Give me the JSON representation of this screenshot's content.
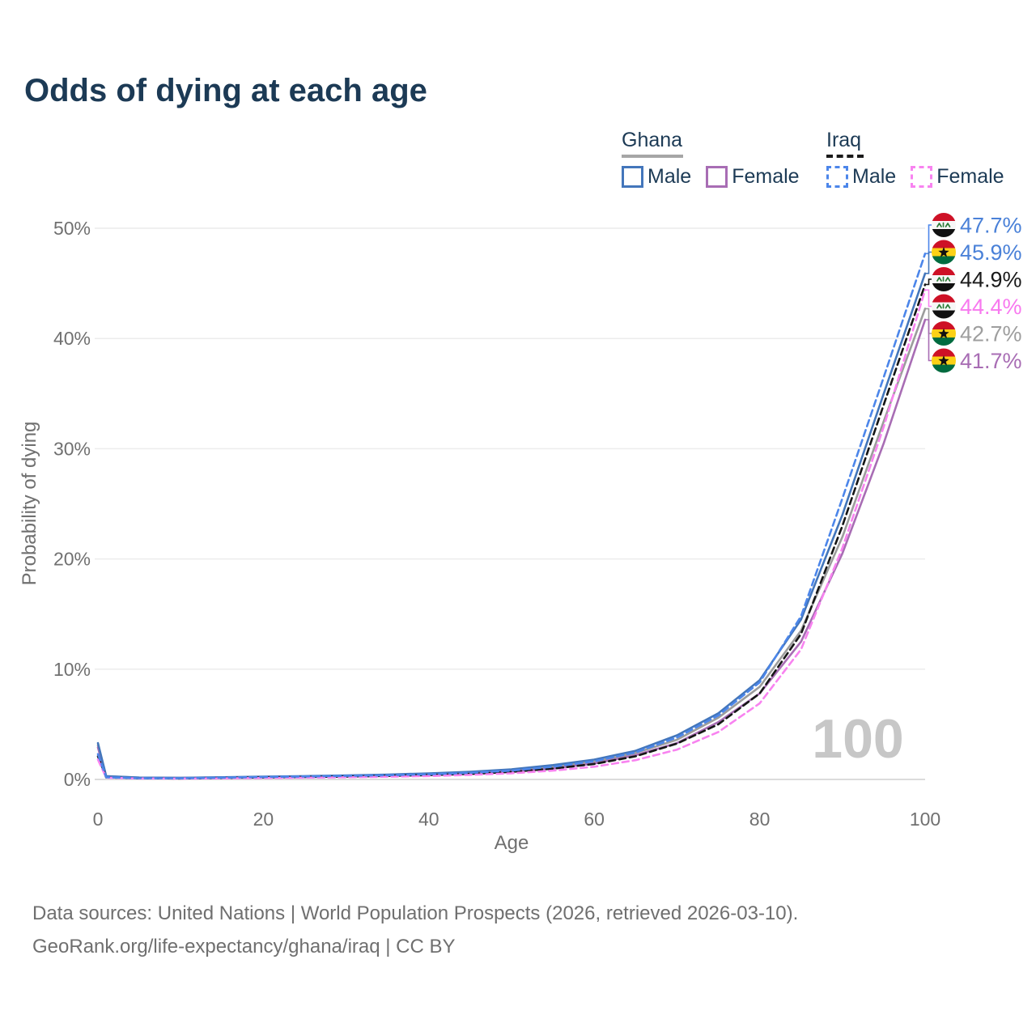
{
  "title": "Odds of dying at each age",
  "legend": {
    "groups": [
      {
        "id": "ghana",
        "label": "Ghana",
        "underline_style": "solid",
        "underline_color": "#a6a6a6",
        "items": [
          {
            "label": "Male",
            "color": "#4376bb",
            "dash": false
          },
          {
            "label": "Female",
            "color": "#a86db4",
            "dash": false
          }
        ]
      },
      {
        "id": "iraq",
        "label": "Iraq",
        "underline_style": "dashed",
        "underline_color": "#1b1b1b",
        "items": [
          {
            "label": "Male",
            "color": "#4c86ea",
            "dash": true
          },
          {
            "label": "Female",
            "color": "#f883f0",
            "dash": true
          }
        ]
      }
    ]
  },
  "chart_data": {
    "type": "line",
    "title": "Odds of dying at each age",
    "xlabel": "Age",
    "ylabel": "Probability of dying",
    "xlim": [
      0,
      100
    ],
    "ylim": [
      0,
      50
    ],
    "grid": true,
    "x_ticks": [
      "0",
      "20",
      "40",
      "60",
      "80",
      "100"
    ],
    "x_tick_values": [
      0,
      20,
      40,
      60,
      80,
      100
    ],
    "y_ticks": [
      "0%",
      "10%",
      "20%",
      "30%",
      "40%",
      "50%"
    ],
    "y_tick_values": [
      0,
      10,
      20,
      30,
      40,
      50
    ],
    "watermark": "100",
    "ages": [
      0,
      1,
      5,
      10,
      15,
      20,
      25,
      30,
      35,
      40,
      45,
      50,
      55,
      60,
      65,
      70,
      75,
      80,
      85,
      90,
      95,
      100
    ],
    "series": [
      {
        "id": "ghana-total",
        "name": "Ghana Both sexes",
        "color": "#9c9c9c",
        "label_color": "#9e9e9e",
        "dash": false,
        "flag": "ghana",
        "end_label": "42.7%",
        "values": [
          3.1,
          0.28,
          0.16,
          0.14,
          0.18,
          0.22,
          0.27,
          0.32,
          0.39,
          0.49,
          0.62,
          0.82,
          1.15,
          1.6,
          2.4,
          3.6,
          5.6,
          8.4,
          13.5,
          22.0,
          32.5,
          42.7
        ]
      },
      {
        "id": "ghana-female",
        "name": "Ghana Female",
        "color": "#a86db4",
        "label_color": "#a86db4",
        "dash": false,
        "flag": "ghana",
        "end_label": "41.7%",
        "values": [
          2.9,
          0.26,
          0.15,
          0.13,
          0.16,
          0.19,
          0.23,
          0.28,
          0.34,
          0.42,
          0.54,
          0.72,
          1.0,
          1.45,
          2.2,
          3.3,
          5.2,
          7.8,
          12.5,
          20.5,
          30.5,
          41.7
        ]
      },
      {
        "id": "ghana-male",
        "name": "Ghana Male",
        "color": "#4376bb",
        "label_color": "#4a81d8",
        "dash": false,
        "flag": "ghana",
        "end_label": "45.9%",
        "values": [
          3.3,
          0.3,
          0.17,
          0.15,
          0.2,
          0.25,
          0.3,
          0.36,
          0.44,
          0.55,
          0.7,
          0.92,
          1.3,
          1.8,
          2.6,
          4.0,
          6.0,
          9.0,
          14.5,
          24.0,
          35.0,
          45.9
        ]
      },
      {
        "id": "iraq-total",
        "name": "Iraq Both sexes",
        "color": "#161616",
        "label_color": "#1a1a1a",
        "dash": true,
        "flag": "iraq",
        "end_label": "44.9%",
        "values": [
          2.1,
          0.18,
          0.1,
          0.09,
          0.13,
          0.18,
          0.22,
          0.26,
          0.32,
          0.39,
          0.5,
          0.68,
          0.98,
          1.4,
          2.1,
          3.25,
          5.0,
          7.8,
          13.2,
          23.0,
          34.0,
          44.9
        ]
      },
      {
        "id": "iraq-female",
        "name": "Iraq Female",
        "color": "#f883f0",
        "label_color": "#f879ef",
        "dash": true,
        "flag": "iraq",
        "end_label": "44.4%",
        "values": [
          1.8,
          0.16,
          0.09,
          0.08,
          0.1,
          0.13,
          0.16,
          0.2,
          0.25,
          0.31,
          0.41,
          0.56,
          0.8,
          1.15,
          1.75,
          2.7,
          4.3,
          6.9,
          11.8,
          21.0,
          32.0,
          44.4
        ]
      },
      {
        "id": "iraq-male",
        "name": "Iraq Male",
        "color": "#4c86ea",
        "label_color": "#4a81d8",
        "dash": true,
        "flag": "iraq",
        "end_label": "47.7%",
        "values": [
          2.3,
          0.2,
          0.11,
          0.1,
          0.16,
          0.22,
          0.27,
          0.32,
          0.38,
          0.47,
          0.6,
          0.8,
          1.15,
          1.65,
          2.45,
          3.8,
          5.8,
          8.8,
          14.8,
          25.5,
          36.5,
          47.7
        ]
      }
    ],
    "flag_colors": {
      "ghana": {
        "red": "#ce1126",
        "gold": "#fcd116",
        "green": "#006b3f",
        "star": "#111111"
      },
      "iraq": {
        "red": "#ce1126",
        "white": "#f7f7f7",
        "black": "#111111",
        "script": "#2e7d3a"
      }
    }
  },
  "footer": {
    "line1": "Data sources: United Nations | World Population Prospects (2026, retrieved 2026-03-10).",
    "line2": "GeoRank.org/life-expectancy/ghana/iraq | CC BY"
  }
}
